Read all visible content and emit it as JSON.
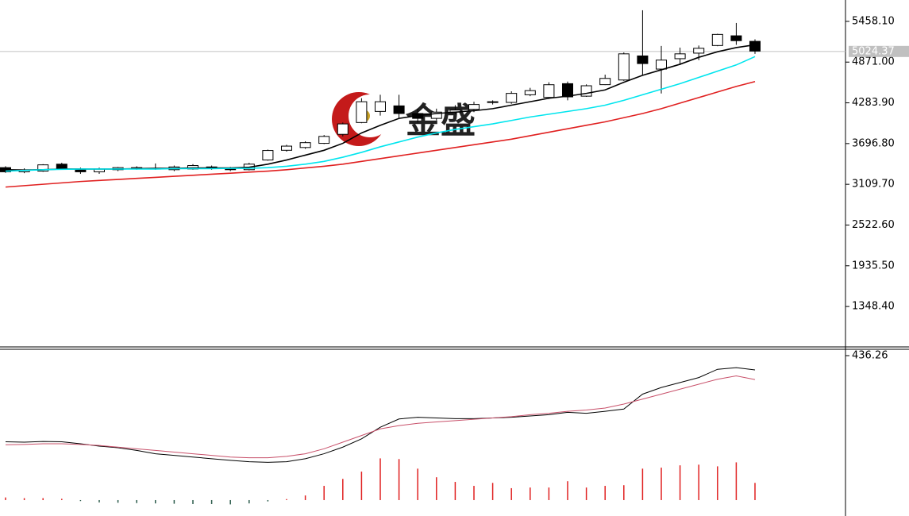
{
  "watermark": "金盛",
  "chart_data": [
    {
      "type": "candlestick",
      "ylim": [
        766,
        5766
      ],
      "yticks": [
        {
          "value": 5458.1,
          "label": "5458.10"
        },
        {
          "value": 4871,
          "label": "4871.00"
        },
        {
          "value": 4283.9,
          "label": "4283.90"
        },
        {
          "value": 3696.8,
          "label": "3696.80"
        },
        {
          "value": 3109.7,
          "label": "3109.70"
        },
        {
          "value": 2522.6,
          "label": "2522.60"
        },
        {
          "value": 1935.5,
          "label": "1935.50"
        },
        {
          "value": 1348.4,
          "label": "1348.40"
        }
      ],
      "last_price": 5024.37,
      "up_color": "#ffffff",
      "down_color": "#000000",
      "open": [
        3350,
        3290,
        3300,
        3400,
        3330,
        3290,
        3320,
        3330,
        3330,
        3320,
        3330,
        3360,
        3340,
        3320,
        3460,
        3600,
        3640,
        3700,
        3830,
        4000,
        4160,
        4240,
        4130,
        4060,
        4150,
        4190,
        4300,
        4290,
        4400,
        4362,
        4560,
        4380,
        4546,
        4613,
        4960,
        4770,
        4920,
        5000,
        5110,
        5250,
        5170
      ],
      "close": [
        3290,
        3310,
        3390,
        3340,
        3290,
        3330,
        3350,
        3350,
        3340,
        3360,
        3380,
        3340,
        3320,
        3400,
        3597,
        3660,
        3710,
        3800,
        3980,
        4300,
        4300,
        4130,
        4060,
        4150,
        4180,
        4260,
        4290,
        4420,
        4460,
        4545,
        4370,
        4530,
        4636,
        4990,
        4850,
        4900,
        4990,
        5070,
        5270,
        5180,
        5030
      ],
      "high": [
        3370,
        3340,
        3400,
        3420,
        3350,
        3350,
        3360,
        3370,
        3410,
        3380,
        3400,
        3380,
        3360,
        3420,
        3610,
        3680,
        3730,
        3820,
        4000,
        4350,
        4400,
        4400,
        4200,
        4200,
        4250,
        4300,
        4320,
        4450,
        4500,
        4580,
        4590,
        4550,
        4690,
        5010,
        5618,
        5104,
        5080,
        5110,
        5280,
        5435,
        5200
      ],
      "low": [
        3275,
        3270,
        3290,
        3330,
        3260,
        3260,
        3300,
        3320,
        3320,
        3300,
        3320,
        3320,
        3300,
        3310,
        3450,
        3580,
        3620,
        3690,
        3800,
        3990,
        4100,
        4050,
        4000,
        4030,
        4120,
        4150,
        4260,
        4270,
        4380,
        4340,
        4320,
        4370,
        4540,
        4600,
        4681,
        4419,
        4830,
        4900,
        5100,
        5120,
        4990
      ],
      "lines": [
        {
          "color": "#000000",
          "values": [
            3320,
            3315,
            3320,
            3330,
            3330,
            3330,
            3330,
            3335,
            3340,
            3340,
            3345,
            3345,
            3345,
            3355,
            3400,
            3460,
            3530,
            3600,
            3700,
            3850,
            3960,
            4060,
            4100,
            4130,
            4150,
            4170,
            4200,
            4250,
            4300,
            4350,
            4380,
            4420,
            4470,
            4580,
            4680,
            4760,
            4840,
            4940,
            5020,
            5080,
            5120
          ]
        },
        {
          "color": "#00e5ee",
          "values": [
            3300,
            3310,
            3320,
            3325,
            3330,
            3330,
            3330,
            3330,
            3330,
            3335,
            3335,
            3335,
            3340,
            3340,
            3350,
            3370,
            3400,
            3440,
            3500,
            3570,
            3650,
            3720,
            3790,
            3850,
            3900,
            3940,
            3980,
            4030,
            4080,
            4120,
            4160,
            4200,
            4250,
            4320,
            4400,
            4480,
            4560,
            4650,
            4740,
            4830,
            4950
          ]
        },
        {
          "color": "#e02020",
          "values": [
            3070,
            3090,
            3110,
            3130,
            3150,
            3165,
            3180,
            3195,
            3210,
            3225,
            3240,
            3255,
            3270,
            3285,
            3300,
            3320,
            3345,
            3370,
            3400,
            3440,
            3480,
            3520,
            3560,
            3600,
            3640,
            3680,
            3720,
            3760,
            3810,
            3860,
            3910,
            3960,
            4010,
            4070,
            4130,
            4200,
            4280,
            4360,
            4440,
            4520,
            4590
          ]
        }
      ]
    },
    {
      "type": "macd",
      "ylim": [
        -48,
        453
      ],
      "yticks": [
        436.26
      ],
      "histogram": {
        "up_color": "#e02020",
        "down_color": "#2a5a4a",
        "values": [
          8,
          6,
          6,
          4,
          -3,
          -7,
          -8,
          -9,
          -10,
          -11,
          -12,
          -12,
          -13,
          -10,
          -4,
          3,
          14,
          43,
          64,
          86,
          126,
          124,
          95,
          69,
          55,
          43,
          52,
          36,
          38,
          38,
          57,
          38,
          43,
          45,
          95,
          98,
          105,
          107,
          102,
          114,
          52
        ]
      },
      "lines": [
        {
          "color": "#000000",
          "values": [
            176,
            175,
            177,
            176,
            170,
            163,
            158,
            150,
            140,
            135,
            130,
            125,
            120,
            116,
            114,
            116,
            125,
            140,
            160,
            185,
            220,
            245,
            250,
            248,
            246,
            246,
            248,
            250,
            254,
            258,
            265,
            262,
            268,
            275,
            320,
            340,
            355,
            370,
            395,
            400,
            393
          ]
        },
        {
          "color": "#c8506a",
          "values": [
            167,
            168,
            170,
            170,
            168,
            165,
            160,
            155,
            150,
            145,
            140,
            135,
            130,
            128,
            128,
            132,
            140,
            155,
            175,
            195,
            215,
            225,
            232,
            236,
            240,
            244,
            248,
            252,
            258,
            262,
            268,
            272,
            278,
            290,
            305,
            320,
            335,
            350,
            365,
            375,
            364
          ]
        }
      ]
    }
  ]
}
